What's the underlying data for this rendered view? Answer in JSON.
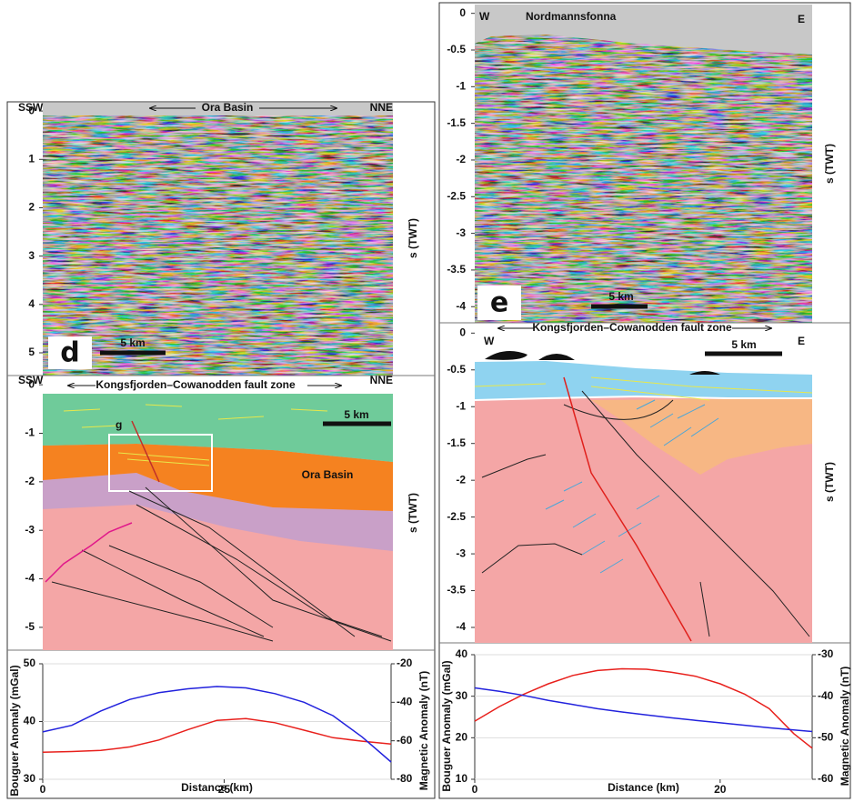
{
  "panels": [
    {
      "letter": "d",
      "seismic": {
        "left": "SSW",
        "right": "NNE",
        "title": "Ora Basin",
        "scale": "5 km",
        "axis_label": "s (TWT)",
        "ylim": [
          -0.19,
          5.47
        ],
        "yticks": [
          0,
          1,
          2,
          3,
          4,
          5
        ]
      },
      "interpretation": {
        "left": "SSW",
        "right": "NNE",
        "title": "Kongsfjorden–Cowanodden fault zone",
        "scale": "5 km",
        "axis_label": "s (TWT)",
        "labels": [
          "g",
          "Ora Basin"
        ],
        "ylim": [
          0.19,
          -5.47
        ],
        "yticks": [
          0,
          -1,
          -2,
          -3,
          -4,
          -5
        ]
      }
    },
    {
      "letter": "e",
      "seismic": {
        "left": "W",
        "right": "E",
        "title": "Nordmannsfonna",
        "scale": "5 km",
        "axis_label": "s (TWT)",
        "ylim": [
          0.12,
          -4.22
        ],
        "yticks": [
          0,
          -0.5,
          -1,
          -1.5,
          -2,
          -2.5,
          -3,
          -3.5,
          -4
        ]
      },
      "interpretation": {
        "left": "W",
        "right": "E",
        "title": "Kongsfjorden–Cowanodden fault zone",
        "scale": "5 km",
        "axis_label": "s (TWT)",
        "ylim": [
          0.14,
          -4.21
        ],
        "yticks": [
          0,
          -0.5,
          -1,
          -1.5,
          -2,
          -2.5,
          -3,
          -3.5,
          -4
        ]
      }
    }
  ],
  "chart_data": [
    {
      "type": "line",
      "xlabel": "Distance (km)",
      "ylabel": "Bouguer Anomaly (mGal)",
      "y2label": "Magnetic Anomaly (nT)",
      "xlim": [
        0,
        48
      ],
      "xticks": [
        0,
        25
      ],
      "ylim": [
        30,
        50
      ],
      "yticks": [
        30,
        40,
        50
      ],
      "y2lim": [
        -80,
        -20
      ],
      "y2ticks": [
        -80,
        -60,
        -40,
        -20
      ],
      "x": [
        0,
        4,
        8,
        12,
        16,
        20,
        24,
        28,
        32,
        36,
        40,
        44,
        48
      ],
      "series": [
        {
          "color": "#e8201c",
          "values": [
            34.7,
            34.8,
            35.0,
            35.6,
            36.8,
            38.6,
            40.2,
            40.5,
            39.8,
            38.5,
            37.2,
            36.6,
            36.1
          ]
        },
        {
          "color": "#2222dd",
          "axis": "y2",
          "values": [
            -55.4,
            -52.0,
            -44.5,
            -38.5,
            -35.0,
            -33.0,
            -31.8,
            -32.5,
            -35.5,
            -40.0,
            -47.0,
            -58.0,
            -71.0
          ]
        }
      ]
    },
    {
      "type": "line",
      "xlabel": "Distance (km)",
      "ylabel": "Bouguer Anomaly (mGal)",
      "y2label": "Magnetic Anomaly (nT)",
      "xlim": [
        0,
        27.5
      ],
      "xticks": [
        0,
        20
      ],
      "ylim": [
        10,
        40
      ],
      "yticks": [
        10,
        20,
        30,
        40
      ],
      "y2lim": [
        -60,
        -30
      ],
      "y2ticks": [
        -60,
        -50,
        -40,
        -30
      ],
      "x": [
        0,
        2,
        4,
        6,
        8,
        10,
        12,
        14,
        16,
        18,
        20,
        22,
        24,
        26,
        27.5
      ],
      "series": [
        {
          "color": "#e8201c",
          "values": [
            24,
            27.5,
            30.5,
            33,
            35,
            36.2,
            36.6,
            36.5,
            35.8,
            34.8,
            33,
            30.5,
            27,
            21,
            17.5
          ]
        },
        {
          "color": "#2222dd",
          "axis": "y2",
          "values": [
            -38,
            -38.8,
            -39.8,
            -41,
            -42,
            -43,
            -43.8,
            -44.5,
            -45.2,
            -45.8,
            -46.4,
            -47,
            -47.6,
            -48.1,
            -48.5
          ]
        }
      ]
    }
  ]
}
